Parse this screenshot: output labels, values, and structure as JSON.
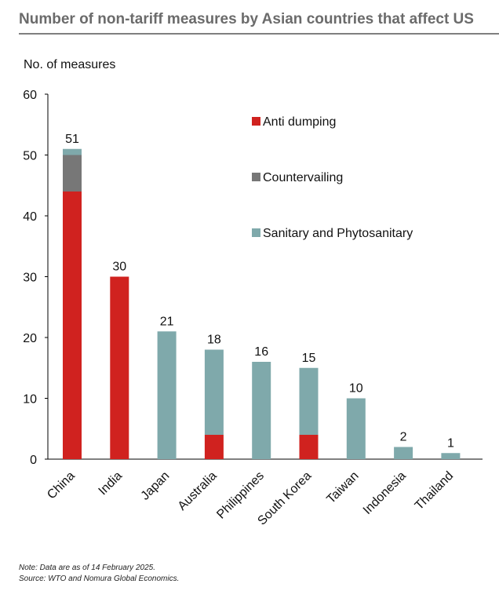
{
  "chart_data": {
    "type": "bar",
    "stacked": true,
    "title": "Number of non-tariff measures by Asian countries that affect US",
    "ylabel": "No. of measures",
    "xlabel": "",
    "ylim": [
      0,
      60
    ],
    "yticks": [
      0,
      10,
      20,
      30,
      40,
      50,
      60
    ],
    "grid": false,
    "legend_position": "top-right",
    "categories": [
      "China",
      "India",
      "Japan",
      "Australia",
      "Philippines",
      "South Korea",
      "Taiwan",
      "Indonesia",
      "Thailand"
    ],
    "series": [
      {
        "name": "Anti dumping",
        "color": "#d0221f",
        "values": [
          44,
          30,
          0,
          4,
          0,
          4,
          0,
          0,
          0
        ]
      },
      {
        "name": "Countervailing",
        "color": "#777777",
        "values": [
          6,
          0,
          0,
          0,
          0,
          0,
          0,
          0,
          0
        ]
      },
      {
        "name": "Sanitary and Phytosanitary",
        "color": "#7fa9ab",
        "values": [
          1,
          0,
          21,
          14,
          16,
          11,
          10,
          2,
          1
        ]
      }
    ],
    "totals": [
      51,
      30,
      21,
      18,
      16,
      15,
      10,
      2,
      1
    ]
  },
  "notes": {
    "note": "Note:  Data are as of 14 February 2025.",
    "source": "Source: WTO and Nomura Global Economics."
  }
}
